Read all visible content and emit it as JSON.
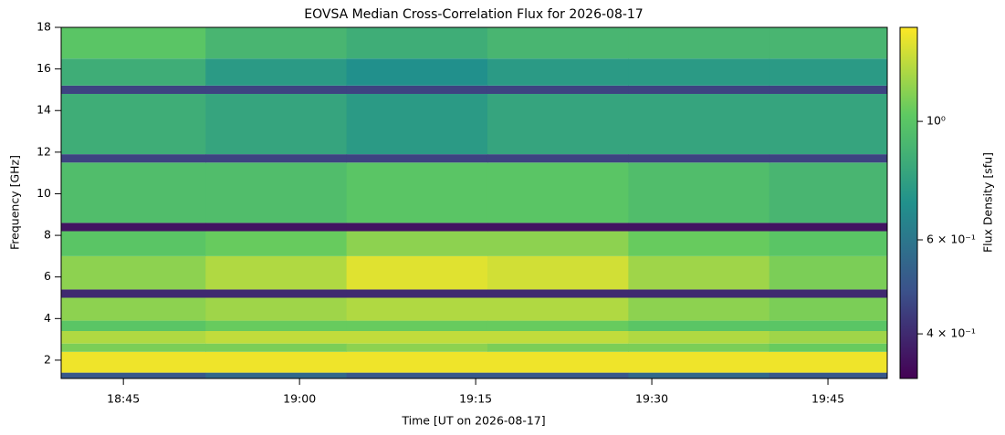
{
  "chart_data": {
    "type": "heatmap",
    "title": "EOVSA Median Cross-Correlation Flux for 2026-08-17",
    "xlabel": "Time [UT on 2026-08-17]",
    "ylabel": "Frequency [GHz]",
    "x_bins": [
      1119.7,
      1132,
      1144,
      1156,
      1168,
      1180,
      1190.05
    ],
    "y_bins": [
      1.12,
      1.4,
      2.4,
      2.8,
      3.4,
      3.9,
      5.0,
      5.4,
      7.0,
      8.2,
      8.6,
      11.5,
      11.9,
      14.8,
      15.2,
      16.5,
      18
    ],
    "values": [
      [
        0.5,
        0.55,
        0.5,
        0.5,
        0.55,
        0.5
      ],
      [
        1.45,
        1.45,
        1.45,
        1.45,
        1.45,
        1.45
      ],
      [
        1.1,
        1.1,
        1.15,
        1.1,
        1.1,
        1.05
      ],
      [
        1.25,
        1.3,
        1.3,
        1.3,
        1.25,
        1.2
      ],
      [
        1.0,
        1.05,
        1.05,
        1.05,
        1.0,
        1.0
      ],
      [
        1.15,
        1.2,
        1.25,
        1.25,
        1.15,
        1.1
      ],
      [
        0.4,
        0.4,
        0.4,
        0.4,
        0.4,
        0.4
      ],
      [
        1.15,
        1.25,
        1.4,
        1.35,
        1.2,
        1.1
      ],
      [
        1.0,
        1.05,
        1.15,
        1.15,
        1.05,
        1.0
      ],
      [
        0.36,
        0.36,
        0.36,
        0.36,
        0.36,
        0.36
      ],
      [
        0.95,
        0.95,
        1.0,
        1.0,
        0.95,
        0.9
      ],
      [
        0.45,
        0.45,
        0.45,
        0.45,
        0.45,
        0.45
      ],
      [
        0.85,
        0.8,
        0.75,
        0.8,
        0.8,
        0.8
      ],
      [
        0.45,
        0.45,
        0.45,
        0.45,
        0.45,
        0.45
      ],
      [
        0.85,
        0.75,
        0.7,
        0.75,
        0.75,
        0.75
      ],
      [
        1.0,
        0.9,
        0.85,
        0.9,
        0.9,
        0.9
      ]
    ],
    "xlim": [
      1119.7,
      1190.05
    ],
    "xticks": [
      {
        "value": 1125,
        "label": "18:45"
      },
      {
        "value": 1140,
        "label": "19:00"
      },
      {
        "value": 1155,
        "label": "19:15"
      },
      {
        "value": 1170,
        "label": "19:30"
      },
      {
        "value": 1185,
        "label": "19:45"
      }
    ],
    "ylim": [
      1.12,
      18
    ],
    "yticks": [
      2,
      4,
      6,
      8,
      10,
      12,
      14,
      16,
      18
    ],
    "colormap": "viridis",
    "clog": true,
    "clim": [
      0.33,
      1.5
    ],
    "cticks": [
      {
        "value": 0.4,
        "label": "4 × 10⁻¹"
      },
      {
        "value": 0.6,
        "label": "6 × 10⁻¹"
      },
      {
        "value": 1,
        "label": "10⁰"
      }
    ],
    "clabel": "Flux Density [sfu]"
  }
}
